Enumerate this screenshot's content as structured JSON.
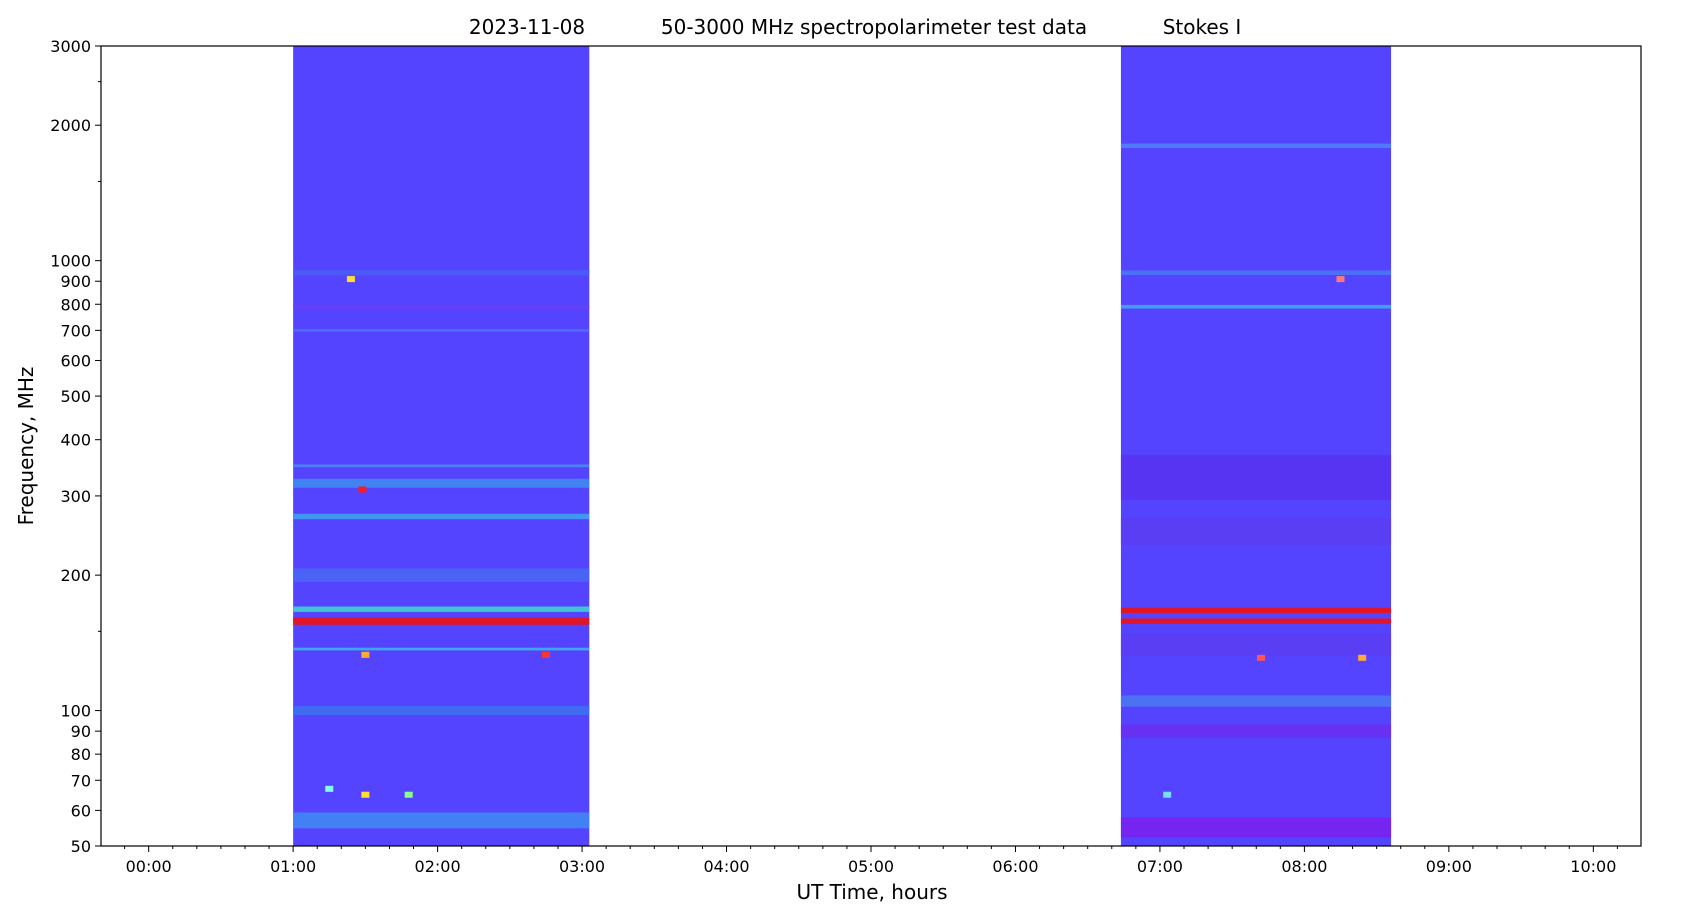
{
  "chart_data": {
    "type": "heatmap",
    "title": {
      "date": "2023-11-08",
      "main": "50-3000 MHz spectropolarimeter test data",
      "stokes": "Stokes I"
    },
    "xlabel": "UT Time, hours",
    "ylabel": "Frequency, MHz",
    "xlim": [
      -0.33,
      10.33
    ],
    "ylim": [
      50,
      3000
    ],
    "yscale": "log",
    "x_ticks": [
      {
        "value": 0,
        "label": "00:00"
      },
      {
        "value": 1,
        "label": "01:00"
      },
      {
        "value": 2,
        "label": "02:00"
      },
      {
        "value": 3,
        "label": "03:00"
      },
      {
        "value": 4,
        "label": "04:00"
      },
      {
        "value": 5,
        "label": "05:00"
      },
      {
        "value": 6,
        "label": "06:00"
      },
      {
        "value": 7,
        "label": "07:00"
      },
      {
        "value": 8,
        "label": "08:00"
      },
      {
        "value": 9,
        "label": "09:00"
      },
      {
        "value": 10,
        "label": "10:00"
      }
    ],
    "y_ticks": [
      {
        "value": 50,
        "label": "50"
      },
      {
        "value": 60,
        "label": "60"
      },
      {
        "value": 70,
        "label": "70"
      },
      {
        "value": 80,
        "label": "80"
      },
      {
        "value": 90,
        "label": "90"
      },
      {
        "value": 100,
        "label": "100"
      },
      {
        "value": 200,
        "label": "200"
      },
      {
        "value": 300,
        "label": "300"
      },
      {
        "value": 400,
        "label": "400"
      },
      {
        "value": 500,
        "label": "500"
      },
      {
        "value": 600,
        "label": "600"
      },
      {
        "value": 700,
        "label": "700"
      },
      {
        "value": 800,
        "label": "800"
      },
      {
        "value": 900,
        "label": "900"
      },
      {
        "value": 1000,
        "label": "1000"
      },
      {
        "value": 2000,
        "label": "2000"
      },
      {
        "value": 3000,
        "label": "3000"
      }
    ],
    "y_minor_ticks": [
      150,
      1500,
      2500
    ],
    "colormap": "rainbow",
    "background_color": "#5544ff",
    "observation_blocks": [
      {
        "start": 1.0,
        "end": 3.05,
        "bands": [
          {
            "freq": 940,
            "width": 0.012,
            "color": "#4a5cf5"
          },
          {
            "freq": 790,
            "width": 0.008,
            "color": "#6a3ff0"
          },
          {
            "freq": 700,
            "width": 0.006,
            "color": "#4f70f5"
          },
          {
            "freq": 350,
            "width": 0.006,
            "color": "#4a88f2"
          },
          {
            "freq": 320,
            "width": 0.02,
            "color": "#3f8cf0"
          },
          {
            "freq": 270,
            "width": 0.012,
            "color": "#3fa0f0"
          },
          {
            "freq": 200,
            "width": 0.03,
            "color": "#4a66f5"
          },
          {
            "freq": 168,
            "width": 0.012,
            "color": "#3fd0d0"
          },
          {
            "freq": 158,
            "width": 0.016,
            "color": "#ee1111"
          },
          {
            "freq": 137,
            "width": 0.006,
            "color": "#3fb0f0"
          },
          {
            "freq": 100,
            "width": 0.02,
            "color": "#3e70f0"
          },
          {
            "freq": 57,
            "width": 0.035,
            "color": "#3f88f2"
          }
        ]
      },
      {
        "start": 6.73,
        "end": 8.6,
        "bands": [
          {
            "freq": 1800,
            "width": 0.01,
            "color": "#4f80f5"
          },
          {
            "freq": 940,
            "width": 0.01,
            "color": "#4a78f5"
          },
          {
            "freq": 790,
            "width": 0.008,
            "color": "#3fa8f0"
          },
          {
            "freq": 330,
            "width": 0.1,
            "color": "#5833f0"
          },
          {
            "freq": 250,
            "width": 0.06,
            "color": "#5a3ef2"
          },
          {
            "freq": 167,
            "width": 0.012,
            "color": "#ee1111"
          },
          {
            "freq": 158,
            "width": 0.012,
            "color": "#ee1111"
          },
          {
            "freq": 140,
            "width": 0.05,
            "color": "#5a3ef2"
          },
          {
            "freq": 105,
            "width": 0.025,
            "color": "#4a78f2"
          },
          {
            "freq": 90,
            "width": 0.03,
            "color": "#6a2ff0"
          },
          {
            "freq": 55,
            "width": 0.045,
            "color": "#7a22f0"
          }
        ]
      }
    ],
    "spots": [
      {
        "t": 1.48,
        "f": 310,
        "color": "#ff1a1a"
      },
      {
        "t": 1.4,
        "f": 910,
        "color": "#ffdd33"
      },
      {
        "t": 1.5,
        "f": 65,
        "color": "#ffdd33"
      },
      {
        "t": 1.8,
        "f": 65,
        "color": "#88ff88"
      },
      {
        "t": 1.25,
        "f": 67,
        "color": "#88ffee"
      },
      {
        "t": 2.75,
        "f": 133,
        "color": "#ff3333"
      },
      {
        "t": 1.5,
        "f": 133,
        "color": "#ffaa33"
      },
      {
        "t": 8.25,
        "f": 910,
        "color": "#ff7777"
      },
      {
        "t": 7.7,
        "f": 131,
        "color": "#ff5555"
      },
      {
        "t": 8.4,
        "f": 131,
        "color": "#ffaa33"
      },
      {
        "t": 7.05,
        "f": 65,
        "color": "#77ddff"
      }
    ]
  }
}
